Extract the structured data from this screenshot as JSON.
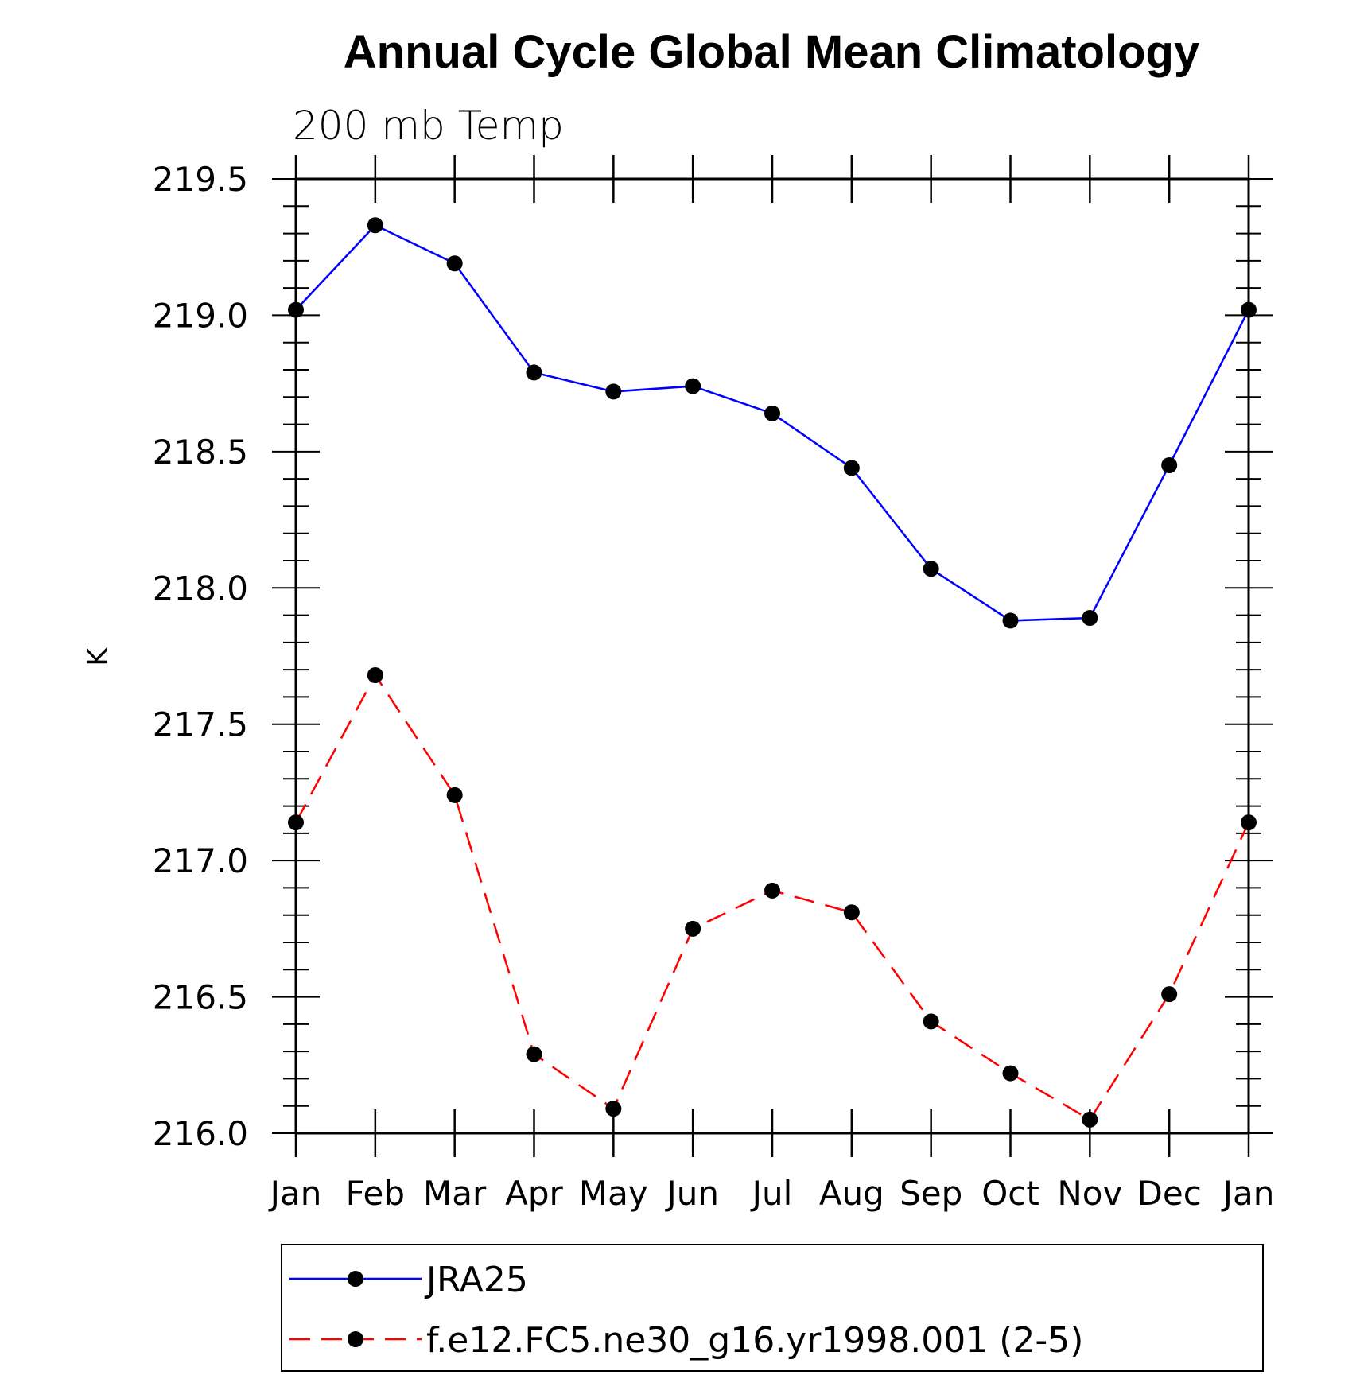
{
  "chart_data": {
    "type": "line",
    "title": "Annual Cycle Global Mean Climatology",
    "subtitle": "200 mb Temp",
    "xlabel": "",
    "ylabel": "K",
    "categories": [
      "Jan",
      "Feb",
      "Mar",
      "Apr",
      "May",
      "Jun",
      "Jul",
      "Aug",
      "Sep",
      "Oct",
      "Nov",
      "Dec",
      "Jan"
    ],
    "ylim": [
      216.0,
      219.5
    ],
    "yticks": [
      "216.0",
      "216.5",
      "217.0",
      "217.5",
      "218.0",
      "218.5",
      "219.0",
      "219.5"
    ],
    "grid": false,
    "legend_position": "bottom",
    "series": [
      {
        "name": "JRA25",
        "color": "#0000ff",
        "dash": "solid",
        "marker": "filled-circle",
        "values": [
          219.02,
          219.33,
          219.19,
          218.79,
          218.72,
          218.74,
          218.64,
          218.44,
          218.07,
          217.88,
          217.89,
          218.45,
          219.02
        ]
      },
      {
        "name": "f.e12.FC5.ne30_g16.yr1998.001 (2-5)",
        "color": "#ff0000",
        "dash": "dashed",
        "marker": "filled-circle",
        "values": [
          217.14,
          217.68,
          217.24,
          216.29,
          216.09,
          216.75,
          216.89,
          216.81,
          216.41,
          216.22,
          216.05,
          216.51,
          217.14
        ]
      }
    ]
  }
}
